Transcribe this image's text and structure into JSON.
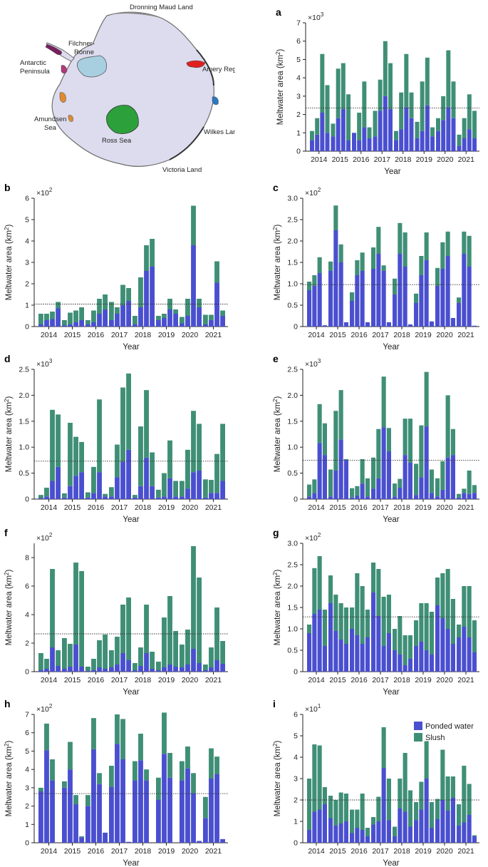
{
  "colors": {
    "ponded": "#4a4fd0",
    "slush": "#3f8f76",
    "ice": "#dcdcee",
    "axis": "#222222"
  },
  "map": {
    "labels": {
      "dronning": "Dronning Maud Land",
      "filchner": "Filchner-",
      "filchner2": "Ronne",
      "antarctic": "Antarctic",
      "antarctic2": "Peninsula",
      "amery": "Amery Region",
      "amundsen": "Amundsen",
      "amundsen2": "Sea",
      "ross": "Ross Sea",
      "wilkes": "Wilkes Land",
      "victoria": "Victoria Land"
    }
  },
  "legend": {
    "ponded": "Ponded water",
    "slush": "Slush"
  },
  "chart_data": [
    {
      "panel": "a",
      "type": "bar",
      "stacked": true,
      "multiplier": "×10",
      "exponent": "3",
      "ylabel": "Meltwater area (km",
      "ylabel_sup": "2",
      "ylabel_end": ")",
      "xlabel": "Year",
      "ylim": [
        0,
        7
      ],
      "yticks": [
        0,
        1,
        2,
        3,
        4,
        5,
        6,
        7
      ],
      "ytick_labels": [
        "0",
        "1",
        "2",
        "3",
        "4",
        "5",
        "6",
        "7"
      ],
      "mean": 2.35,
      "categories": [
        "2014",
        "2015",
        "2016",
        "2017",
        "2018",
        "2019",
        "2020",
        "2021"
      ],
      "ponded": [
        [
          0.6,
          0.9,
          2.1,
          1.0
        ],
        [
          0.8,
          1.8,
          2.3,
          0.6
        ],
        [
          1.0,
          0.6,
          1.3,
          0.7
        ],
        [
          0.8,
          2.2,
          3.0,
          2.3
        ],
        [
          0.6,
          1.2,
          2.4,
          1.8
        ],
        [
          0.7,
          1.1,
          2.5,
          0.8
        ],
        [
          1.1,
          1.7,
          2.4,
          1.8
        ],
        [
          0.3,
          0.7,
          1.2,
          0.7
        ]
      ],
      "slush": [
        [
          0.5,
          0.9,
          3.2,
          2.6
        ],
        [
          0.7,
          2.7,
          2.5,
          2.5
        ],
        [
          0.0,
          1.5,
          2.5,
          0.6
        ],
        [
          1.4,
          1.7,
          3.0,
          2.5
        ],
        [
          0.5,
          2.0,
          2.9,
          1.4
        ],
        [
          0.9,
          2.7,
          2.6,
          0.5
        ],
        [
          0.7,
          1.3,
          3.1,
          2.0
        ],
        [
          0.6,
          1.1,
          1.9,
          1.5
        ]
      ]
    },
    {
      "panel": "b",
      "type": "bar",
      "stacked": true,
      "multiplier": "×10",
      "exponent": "2",
      "ylabel": "Meltwater area (km",
      "ylabel_sup": "2",
      "ylabel_end": ")",
      "xlabel": "Year",
      "ylim": [
        0,
        6
      ],
      "yticks": [
        0,
        1,
        2,
        3,
        4,
        5,
        6
      ],
      "ytick_labels": [
        "0",
        "1",
        "2",
        "3",
        "4",
        "5",
        "6"
      ],
      "mean": 1.05,
      "categories": [
        "2014",
        "2015",
        "2016",
        "2017",
        "2018",
        "2019",
        "2020",
        "2021"
      ],
      "ponded": [
        [
          0.1,
          0.3,
          0.35,
          0.85
        ],
        [
          0.05,
          0.1,
          0.2,
          0.3
        ],
        [
          0.1,
          0.2,
          0.6,
          0.8
        ],
        [
          0.3,
          0.6,
          1.0,
          1.2
        ],
        [
          0.1,
          0.9,
          2.6,
          2.8
        ],
        [
          0.3,
          0.4,
          0.8,
          0.6
        ],
        [
          0.15,
          0.5,
          3.8,
          0.9
        ],
        [
          0.1,
          0.3,
          2.05,
          0.5
        ]
      ],
      "slush": [
        [
          0.5,
          0.3,
          0.35,
          0.3
        ],
        [
          0.25,
          0.55,
          0.55,
          0.6
        ],
        [
          0.2,
          0.55,
          0.7,
          0.7
        ],
        [
          0.85,
          0.3,
          0.95,
          0.6
        ],
        [
          0.4,
          1.4,
          1.2,
          1.3
        ],
        [
          0.2,
          0.2,
          0.5,
          0.2
        ],
        [
          0.3,
          0.8,
          1.85,
          0.4
        ],
        [
          0.45,
          0.25,
          1.0,
          0.25
        ]
      ]
    },
    {
      "panel": "c",
      "type": "bar",
      "stacked": true,
      "multiplier": "×10",
      "exponent": "2",
      "ylabel": "Meltwater area (km",
      "ylabel_sup": "2",
      "ylabel_end": ")",
      "xlabel": "Year",
      "ylim": [
        0,
        3
      ],
      "yticks": [
        0,
        0.5,
        1,
        1.5,
        2,
        2.5,
        3
      ],
      "ytick_labels": [
        "0",
        "0.5",
        "1.0",
        "1.5",
        "2.0",
        "2.5",
        "3.0"
      ],
      "mean": 0.98,
      "categories": [
        "2014",
        "2015",
        "2016",
        "2017",
        "2018",
        "2019",
        "2020",
        "2021"
      ],
      "ponded": [
        [
          0.85,
          0.95,
          1.25,
          0.03
        ],
        [
          1.3,
          2.25,
          1.5,
          0.1
        ],
        [
          0.6,
          1.2,
          1.3,
          0.1
        ],
        [
          1.35,
          1.7,
          1.3,
          0.1
        ],
        [
          0.75,
          1.7,
          1.4,
          0.05
        ],
        [
          0.55,
          1.2,
          1.55,
          0.12
        ],
        [
          0.95,
          1.35,
          1.65,
          0.2
        ],
        [
          0.55,
          1.7,
          1.4,
          0.02
        ]
      ],
      "slush": [
        [
          0.2,
          0.25,
          0.37,
          0.0
        ],
        [
          0.22,
          0.58,
          0.42,
          0.0
        ],
        [
          0.2,
          0.35,
          0.43,
          0.0
        ],
        [
          0.5,
          0.63,
          0.13,
          0.0
        ],
        [
          0.37,
          0.72,
          0.8,
          0.0
        ],
        [
          0.22,
          0.45,
          0.65,
          0.0
        ],
        [
          0.42,
          0.62,
          0.57,
          0.0
        ],
        [
          0.13,
          0.52,
          0.72,
          0.0
        ]
      ]
    },
    {
      "panel": "d",
      "type": "bar",
      "stacked": true,
      "multiplier": "×10",
      "exponent": "3",
      "ylabel": "Meltwater area (km",
      "ylabel_sup": "2",
      "ylabel_end": ")",
      "xlabel": "Year",
      "ylim": [
        0,
        2.5
      ],
      "yticks": [
        0,
        0.5,
        1,
        1.5,
        2,
        2.5
      ],
      "ytick_labels": [
        "0",
        "0.5",
        "1.0",
        "1.5",
        "2.0",
        "2.5"
      ],
      "mean": 0.73,
      "categories": [
        "2014",
        "2015",
        "2016",
        "2017",
        "2018",
        "2019",
        "2020",
        "2021"
      ],
      "ponded": [
        [
          0.02,
          0.05,
          0.35,
          0.62
        ],
        [
          0.03,
          0.25,
          0.45,
          0.52
        ],
        [
          0.03,
          0.12,
          0.52,
          0.05
        ],
        [
          0.05,
          0.42,
          0.72,
          0.95
        ],
        [
          0.03,
          0.25,
          0.8,
          0.25
        ],
        [
          0.03,
          0.05,
          0.4,
          0.05
        ],
        [
          0.05,
          0.2,
          0.52,
          0.55
        ],
        [
          0.03,
          0.12,
          0.12,
          0.35
        ]
      ],
      "slush": [
        [
          0.06,
          0.17,
          1.37,
          1.01
        ],
        [
          0.08,
          1.22,
          0.75,
          0.58
        ],
        [
          0.1,
          0.5,
          1.4,
          0.05
        ],
        [
          0.18,
          0.63,
          1.43,
          1.47
        ],
        [
          0.05,
          1.15,
          1.3,
          0.65
        ],
        [
          0.15,
          0.45,
          0.73,
          0.3
        ],
        [
          0.3,
          0.75,
          1.18,
          0.9
        ],
        [
          0.35,
          0.25,
          0.75,
          1.1
        ]
      ]
    },
    {
      "panel": "e",
      "type": "bar",
      "stacked": true,
      "multiplier": "×10",
      "exponent": "3",
      "ylabel": "Meltwater area (km",
      "ylabel_sup": "2",
      "ylabel_end": ")",
      "xlabel": "Year",
      "ylim": [
        0,
        2.5
      ],
      "yticks": [
        0,
        0.5,
        1,
        1.5,
        2,
        2.5
      ],
      "ytick_labels": [
        "0",
        "0.5",
        "1.0",
        "1.5",
        "2.0",
        "2.5"
      ],
      "mean": 0.75,
      "categories": [
        "2014",
        "2015",
        "2016",
        "2017",
        "2018",
        "2019",
        "2020",
        "2021"
      ],
      "ponded": [
        [
          0.05,
          0.12,
          1.08,
          0.85
        ],
        [
          0.05,
          0.55,
          1.15,
          0.75
        ],
        [
          0.03,
          0.07,
          0.3,
          0.05
        ],
        [
          0.2,
          0.4,
          1.38,
          0.92
        ],
        [
          0.05,
          0.22,
          0.85,
          0.7
        ],
        [
          0.08,
          0.42,
          1.4,
          0.12
        ],
        [
          0.05,
          0.18,
          0.8,
          0.85
        ],
        [
          0.03,
          0.12,
          0.1,
          0.12
        ]
      ],
      "slush": [
        [
          0.23,
          0.26,
          0.75,
          0.61
        ],
        [
          0.52,
          1.15,
          0.95,
          0.02
        ],
        [
          0.18,
          0.18,
          0.47,
          0.35
        ],
        [
          0.6,
          0.95,
          0.98,
          0.45
        ],
        [
          0.25,
          0.17,
          0.7,
          0.85
        ],
        [
          0.6,
          1.0,
          1.05,
          0.45
        ],
        [
          0.35,
          0.55,
          1.2,
          0.5
        ],
        [
          0.07,
          0.08,
          0.45,
          0.15
        ]
      ]
    },
    {
      "panel": "f",
      "type": "bar",
      "stacked": true,
      "multiplier": "×10",
      "exponent": "2",
      "ylabel": "Meltwater area (km",
      "ylabel_sup": "2",
      "ylabel_end": ")",
      "xlabel": "Year",
      "ylim": [
        0,
        9
      ],
      "yticks": [
        0,
        2,
        4,
        6,
        8
      ],
      "ytick_labels": [
        "0",
        "2",
        "4",
        "6",
        "8"
      ],
      "mean": 2.65,
      "categories": [
        "2014",
        "2015",
        "2016",
        "2017",
        "2018",
        "2019",
        "2020",
        "2021"
      ],
      "ponded": [
        [
          0.1,
          0.2,
          1.7,
          0.4
        ],
        [
          0.2,
          0.35,
          1.9,
          0.35
        ],
        [
          0.05,
          0.1,
          0.3,
          0.2
        ],
        [
          0.3,
          0.5,
          1.3,
          0.8
        ],
        [
          0.1,
          0.4,
          1.3,
          0.2
        ],
        [
          0.1,
          0.3,
          0.5,
          0.35
        ],
        [
          0.3,
          0.5,
          1.6,
          0.6
        ],
        [
          0.1,
          0.3,
          0.8,
          0.55
        ]
      ],
      "slush": [
        [
          1.2,
          0.7,
          5.5,
          1.1
        ],
        [
          2.15,
          1.6,
          5.75,
          6.7
        ],
        [
          0.3,
          0.8,
          1.9,
          2.4
        ],
        [
          1.2,
          1.95,
          3.4,
          4.4
        ],
        [
          0.5,
          1.3,
          3.4,
          1.2
        ],
        [
          0.6,
          3.5,
          4.8,
          2.5
        ],
        [
          1.6,
          2.45,
          7.2,
          6.0
        ],
        [
          0.4,
          1.4,
          3.7,
          1.6
        ]
      ]
    },
    {
      "panel": "g",
      "type": "bar",
      "stacked": true,
      "multiplier": "×10",
      "exponent": "2",
      "ylabel": "Meltwater area (km",
      "ylabel_sup": "2",
      "ylabel_end": ")",
      "xlabel": "Year",
      "ylim": [
        0,
        3
      ],
      "yticks": [
        0,
        0.5,
        1,
        1.5,
        2,
        2.5,
        3
      ],
      "ytick_labels": [
        "0",
        "0.5",
        "1.0",
        "1.5",
        "2.0",
        "2.5",
        "3.0"
      ],
      "mean": 1.28,
      "categories": [
        "2014",
        "2015",
        "2016",
        "2017",
        "2018",
        "2019",
        "2020",
        "2021"
      ],
      "ponded": [
        [
          0.9,
          1.35,
          1.45,
          0.6
        ],
        [
          1.6,
          0.95,
          0.75,
          0.65
        ],
        [
          1.0,
          0.85,
          0.65,
          0.8
        ],
        [
          1.85,
          1.3,
          0.6,
          0.9
        ],
        [
          0.5,
          0.4,
          0.15,
          0.3
        ],
        [
          0.6,
          0.7,
          0.5,
          0.4
        ],
        [
          1.55,
          1.25,
          1.0,
          0.65
        ],
        [
          0.8,
          1.05,
          0.8,
          0.45
        ]
      ],
      "slush": [
        [
          0.2,
          1.07,
          1.25,
          0.85
        ],
        [
          0.65,
          0.85,
          0.85,
          0.85
        ],
        [
          0.5,
          1.45,
          1.35,
          0.65
        ],
        [
          0.7,
          1.1,
          1.15,
          0.9
        ],
        [
          0.5,
          0.9,
          0.7,
          0.55
        ],
        [
          0.6,
          0.9,
          1.1,
          1.0
        ],
        [
          0.65,
          1.05,
          1.4,
          1.05
        ],
        [
          0.3,
          0.95,
          1.2,
          0.75
        ]
      ]
    },
    {
      "panel": "h",
      "type": "bar",
      "stacked": true,
      "multiplier": "×10",
      "exponent": "2",
      "ylabel": "Meltwater area (km",
      "ylabel_sup": "2",
      "ylabel_end": ")",
      "xlabel": "Year",
      "ylim": [
        0,
        7
      ],
      "yticks": [
        0,
        1,
        2,
        3,
        4,
        5,
        6,
        7
      ],
      "ytick_labels": [
        "0",
        "1",
        "2",
        "3",
        "4",
        "5",
        "6",
        "7"
      ],
      "mean": 2.68,
      "categories": [
        "2014",
        "2015",
        "2016",
        "2017",
        "2018",
        "2019",
        "2020",
        "2021"
      ],
      "ponded": [
        [
          2.8,
          5.05,
          3.4,
          0.0
        ],
        [
          3.0,
          4.0,
          2.1,
          0.3
        ],
        [
          2.0,
          5.1,
          3.2,
          0.55
        ],
        [
          3.05,
          5.4,
          4.55,
          0.05
        ],
        [
          3.4,
          4.5,
          3.4,
          0.0
        ],
        [
          2.35,
          4.85,
          3.55,
          0.0
        ],
        [
          3.4,
          4.05,
          2.7,
          0.1
        ],
        [
          1.35,
          3.5,
          3.75,
          0.2
        ]
      ],
      "slush": [
        [
          0.2,
          1.45,
          1.15,
          0.0
        ],
        [
          0.35,
          1.5,
          0.5,
          0.05
        ],
        [
          0.6,
          1.7,
          0.6,
          0.0
        ],
        [
          1.15,
          1.6,
          2.2,
          0.0
        ],
        [
          1.05,
          1.45,
          0.6,
          0.0
        ],
        [
          1.2,
          2.25,
          1.35,
          0.0
        ],
        [
          1.05,
          1.2,
          1.1,
          0.0
        ],
        [
          1.15,
          1.65,
          0.95,
          0.0
        ]
      ]
    },
    {
      "panel": "i",
      "type": "bar",
      "stacked": true,
      "multiplier": "×10",
      "exponent": "1",
      "ylabel": "Meltwater area (km",
      "ylabel_sup": "2",
      "ylabel_end": ")",
      "xlabel": "Year",
      "ylim": [
        0,
        6
      ],
      "yticks": [
        0,
        1,
        2,
        3,
        4,
        5,
        6
      ],
      "ytick_labels": [
        "0",
        "1",
        "2",
        "3",
        "4",
        "5",
        "6"
      ],
      "mean": 2.0,
      "categories": [
        "2014",
        "2015",
        "2016",
        "2017",
        "2018",
        "2019",
        "2020",
        "2021"
      ],
      "ponded": [
        [
          0.6,
          1.45,
          1.55,
          1.8
        ],
        [
          1.15,
          0.8,
          0.9,
          1.0
        ],
        [
          0.45,
          0.7,
          0.6,
          0.3
        ],
        [
          0.85,
          1.0,
          3.5,
          1.05
        ],
        [
          0.3,
          1.6,
          1.45,
          0.75
        ],
        [
          1.05,
          1.55,
          3.0,
          0.7
        ],
        [
          1.1,
          2.0,
          1.5,
          2.1
        ],
        [
          0.8,
          0.95,
          1.3,
          0.3
        ]
      ],
      "slush": [
        [
          2.4,
          3.15,
          3.0,
          0.8
        ],
        [
          1.05,
          1.2,
          1.45,
          1.3
        ],
        [
          1.1,
          0.85,
          1.7,
          0.4
        ],
        [
          0.35,
          1.15,
          1.9,
          1.95
        ],
        [
          0.45,
          1.4,
          2.75,
          1.7
        ],
        [
          0.85,
          1.3,
          1.75,
          1.2
        ],
        [
          0.95,
          2.35,
          1.6,
          1.0
        ],
        [
          1.0,
          2.65,
          1.45,
          0.05
        ]
      ]
    }
  ]
}
